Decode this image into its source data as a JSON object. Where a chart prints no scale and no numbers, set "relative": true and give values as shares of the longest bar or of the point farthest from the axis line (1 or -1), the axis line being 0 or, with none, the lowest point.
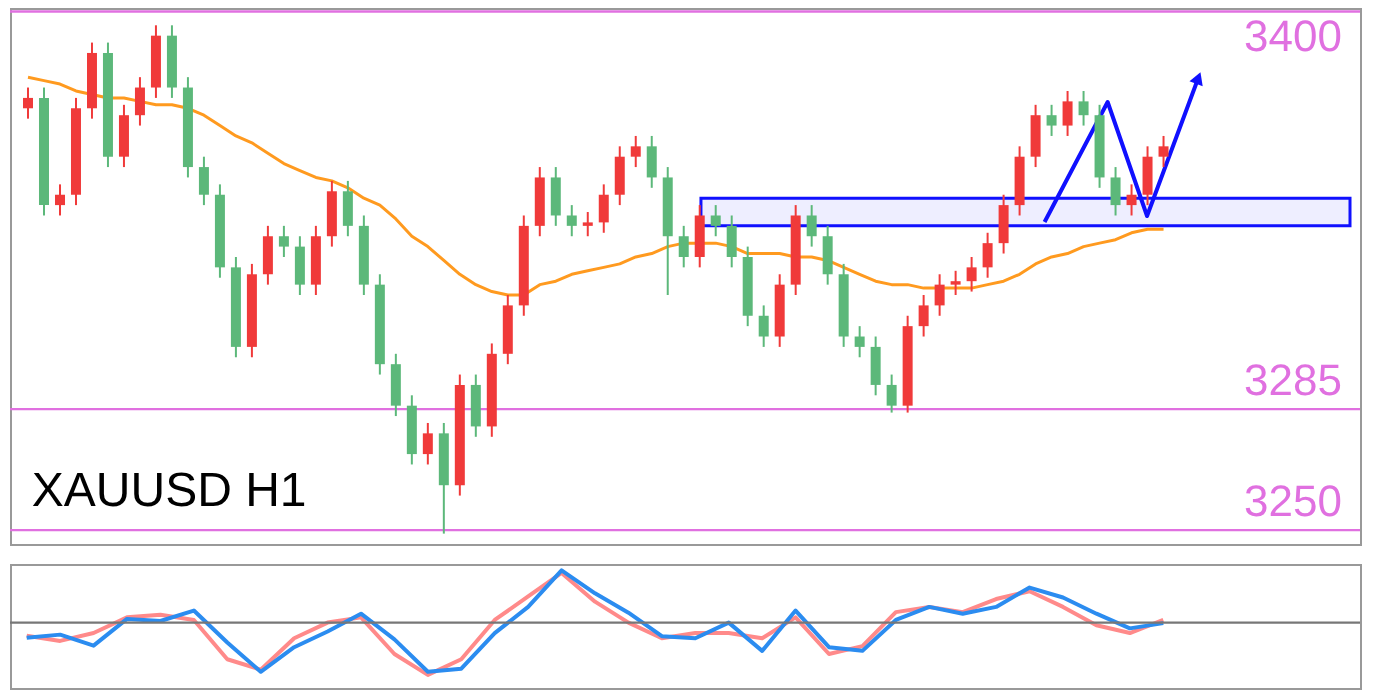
{
  "chart_data": [
    {
      "type": "candlestick",
      "title": "XAUUSD H1",
      "categories": [
        null,
        null,
        null,
        null,
        null,
        null,
        null,
        null,
        null,
        null,
        null,
        null,
        null,
        null,
        null,
        null,
        null,
        null,
        null,
        null,
        null,
        null,
        null,
        null,
        null,
        null,
        null,
        null,
        null,
        null,
        null,
        null,
        null,
        null,
        null,
        null,
        null,
        null,
        null,
        null,
        null,
        null,
        null,
        null,
        null,
        null,
        null,
        null,
        null,
        null,
        null,
        null,
        null,
        null,
        null,
        null,
        null,
        null,
        null,
        null,
        null,
        null,
        null,
        null,
        null,
        null,
        null,
        null,
        null,
        null,
        null,
        null
      ],
      "ohlc": [
        [
          3372,
          3378,
          3369,
          3375
        ],
        [
          3375,
          3378,
          3341,
          3344
        ],
        [
          3344,
          3350,
          3341,
          3347
        ],
        [
          3347,
          3375,
          3344,
          3372
        ],
        [
          3372,
          3391,
          3369,
          3388
        ],
        [
          3388,
          3391,
          3355,
          3358
        ],
        [
          3358,
          3373,
          3355,
          3370
        ],
        [
          3370,
          3381,
          3367,
          3378
        ],
        [
          3378,
          3396,
          3375,
          3393
        ],
        [
          3393,
          3396,
          3375,
          3378
        ],
        [
          3378,
          3381,
          3352,
          3355
        ],
        [
          3355,
          3358,
          3344,
          3347
        ],
        [
          3347,
          3350,
          3323,
          3326
        ],
        [
          3326,
          3329,
          3300,
          3303
        ],
        [
          3303,
          3327,
          3300,
          3324
        ],
        [
          3324,
          3338,
          3321,
          3335
        ],
        [
          3335,
          3338,
          3329,
          3332
        ],
        [
          3332,
          3335,
          3318,
          3321
        ],
        [
          3321,
          3338,
          3318,
          3335
        ],
        [
          3335,
          3351,
          3332,
          3348
        ],
        [
          3348,
          3351,
          3335,
          3338
        ],
        [
          3338,
          3341,
          3318,
          3321
        ],
        [
          3321,
          3324,
          3295,
          3298
        ],
        [
          3298,
          3301,
          3283,
          3286
        ],
        [
          3286,
          3289,
          3269,
          3272
        ],
        [
          3272,
          3281,
          3269,
          3278
        ],
        [
          3278,
          3281,
          3249,
          3263
        ],
        [
          3263,
          3295,
          3260,
          3292
        ],
        [
          3292,
          3295,
          3277,
          3280
        ],
        [
          3280,
          3304,
          3277,
          3301
        ],
        [
          3301,
          3318,
          3298,
          3315
        ],
        [
          3315,
          3341,
          3312,
          3338
        ],
        [
          3338,
          3355,
          3335,
          3352
        ],
        [
          3352,
          3355,
          3338,
          3341
        ],
        [
          3341,
          3344,
          3335,
          3338
        ],
        [
          3338,
          3342,
          3335,
          3339
        ],
        [
          3339,
          3350,
          3336,
          3347
        ],
        [
          3347,
          3361,
          3344,
          3358
        ],
        [
          3358,
          3364,
          3355,
          3361
        ],
        [
          3361,
          3364,
          3349,
          3352
        ],
        [
          3352,
          3355,
          3318,
          3335
        ],
        [
          3335,
          3338,
          3326,
          3329
        ],
        [
          3329,
          3344,
          3326,
          3341
        ],
        [
          3341,
          3344,
          3335,
          3338
        ],
        [
          3338,
          3341,
          3326,
          3329
        ],
        [
          3329,
          3332,
          3309,
          3312
        ],
        [
          3312,
          3315,
          3303,
          3306
        ],
        [
          3306,
          3324,
          3303,
          3321
        ],
        [
          3321,
          3344,
          3318,
          3341
        ],
        [
          3341,
          3344,
          3332,
          3335
        ],
        [
          3335,
          3338,
          3321,
          3324
        ],
        [
          3324,
          3327,
          3303,
          3306
        ],
        [
          3306,
          3309,
          3300,
          3303
        ],
        [
          3303,
          3306,
          3289,
          3292
        ],
        [
          3292,
          3295,
          3284,
          3286
        ],
        [
          3286,
          3312,
          3284,
          3309
        ],
        [
          3309,
          3318,
          3306,
          3315
        ],
        [
          3315,
          3324,
          3312,
          3321
        ],
        [
          3321,
          3325,
          3318,
          3322
        ],
        [
          3322,
          3329,
          3319,
          3326
        ],
        [
          3326,
          3336,
          3323,
          3333
        ],
        [
          3333,
          3347,
          3330,
          3344
        ],
        [
          3344,
          3361,
          3341,
          3358
        ],
        [
          3358,
          3373,
          3355,
          3370
        ],
        [
          3370,
          3373,
          3364,
          3367
        ],
        [
          3367,
          3377,
          3364,
          3374
        ],
        [
          3374,
          3377,
          3367,
          3370
        ],
        [
          3370,
          3373,
          3349,
          3352
        ],
        [
          3352,
          3355,
          3341,
          3344
        ],
        [
          3344,
          3350,
          3341,
          3347
        ],
        [
          3347,
          3361,
          3344,
          3358
        ],
        [
          3358,
          3364,
          3355,
          3361
        ]
      ],
      "colors": [
        "#f03a3a",
        "#5cb87a",
        "#f03a3a",
        "#f03a3a",
        "#f03a3a",
        "#5cb87a",
        "#f03a3a",
        "#f03a3a",
        "#f03a3a",
        "#5cb87a",
        "#5cb87a",
        "#5cb87a",
        "#5cb87a",
        "#5cb87a",
        "#f03a3a",
        "#f03a3a",
        "#5cb87a",
        "#5cb87a",
        "#f03a3a",
        "#f03a3a",
        "#5cb87a",
        "#5cb87a",
        "#5cb87a",
        "#5cb87a",
        "#5cb87a",
        "#f03a3a",
        "#5cb87a",
        "#f03a3a",
        "#5cb87a",
        "#f03a3a",
        "#f03a3a",
        "#f03a3a",
        "#f03a3a",
        "#5cb87a",
        "#5cb87a",
        "#f03a3a",
        "#f03a3a",
        "#f03a3a",
        "#f03a3a",
        "#5cb87a",
        "#5cb87a",
        "#5cb87a",
        "#f03a3a",
        "#5cb87a",
        "#5cb87a",
        "#5cb87a",
        "#5cb87a",
        "#f03a3a",
        "#f03a3a",
        "#5cb87a",
        "#5cb87a",
        "#5cb87a",
        "#5cb87a",
        "#5cb87a",
        "#5cb87a",
        "#f03a3a",
        "#f03a3a",
        "#f03a3a",
        "#f03a3a",
        "#f03a3a",
        "#f03a3a",
        "#f03a3a",
        "#f03a3a",
        "#f03a3a",
        "#5cb87a",
        "#f03a3a",
        "#5cb87a",
        "#5cb87a",
        "#5cb87a",
        "#f03a3a",
        "#f03a3a",
        "#f03a3a"
      ],
      "series": [
        {
          "type": "line",
          "color": "#ff9a1f",
          "values": [
            3381,
            3380,
            3379,
            3377,
            3376,
            3375,
            3375,
            3374,
            3373,
            3373,
            3372,
            3370,
            3367,
            3364,
            3362,
            3359,
            3356,
            3354,
            3352,
            3351,
            3349,
            3346,
            3344,
            3340,
            3335,
            3332,
            3328,
            3324,
            3321,
            3319,
            3318,
            3318,
            3321,
            3322,
            3324,
            3325,
            3326,
            3327,
            3329,
            3330,
            3332,
            3333,
            3333,
            3333,
            3332,
            3330,
            3330,
            3330,
            3329,
            3329,
            3328,
            3326,
            3324,
            3322,
            3321,
            3321,
            3320,
            3320,
            3320,
            3320,
            3321,
            3322,
            3324,
            3327,
            3329,
            3330,
            3332,
            3333,
            3334,
            3336,
            3337,
            3337
          ]
        }
      ],
      "ref_lines": [
        {
          "axis": "y",
          "value": 3400,
          "label": "3400",
          "color": "#e070e0"
        },
        {
          "axis": "y",
          "value": 3285,
          "label": "3285",
          "color": "#e070e0"
        },
        {
          "axis": "y",
          "value": 3250,
          "label": "3250",
          "color": "#e070e0"
        }
      ],
      "bands": [
        {
          "axis": "y",
          "from": 3338,
          "to": 3346,
          "color": "#1010ff"
        }
      ],
      "ylim": [
        3246,
        3401
      ],
      "tick_labels": false
    },
    {
      "type": "line",
      "relative": true,
      "categories": [
        null,
        null,
        null,
        null,
        null,
        null,
        null,
        null,
        null,
        null,
        null,
        null,
        null,
        null,
        null,
        null,
        null,
        null,
        null,
        null,
        null,
        null,
        null,
        null,
        null,
        null,
        null,
        null,
        null,
        null,
        null,
        null,
        null,
        null,
        null
      ],
      "series": [
        {
          "color": "#ff8a8a",
          "values": [
            -0.25,
            -0.35,
            -0.2,
            0.1,
            0.15,
            0.05,
            -0.7,
            -0.9,
            -0.3,
            0,
            0.1,
            -0.6,
            -1.0,
            -0.7,
            0.05,
            0.5,
            0.95,
            0.4,
            0.0,
            -0.3,
            -0.2,
            -0.2,
            -0.3,
            0.1,
            -0.6,
            -0.45,
            0.2,
            0.3,
            0.2,
            0.45,
            0.6,
            0.3,
            -0.05,
            -0.2,
            0.05
          ]
        },
        {
          "color": "#2b8cf0",
          "values": [
            -0.29,
            -0.23,
            -0.44,
            0.07,
            0.03,
            0.23,
            -0.38,
            -0.94,
            -0.47,
            -0.17,
            0.17,
            -0.32,
            -0.94,
            -0.88,
            -0.2,
            0.3,
            1,
            0.56,
            0.19,
            -0.26,
            -0.3,
            0,
            -0.54,
            0.23,
            -0.47,
            -0.54,
            0.05,
            0.3,
            0.17,
            0.3,
            0.67,
            0.48,
            0.17,
            -0.11,
            -0.01
          ]
        }
      ],
      "ref_lines": [
        {
          "axis": "y",
          "value": 0,
          "color": "#777777"
        }
      ],
      "tick_labels": false
    }
  ]
}
